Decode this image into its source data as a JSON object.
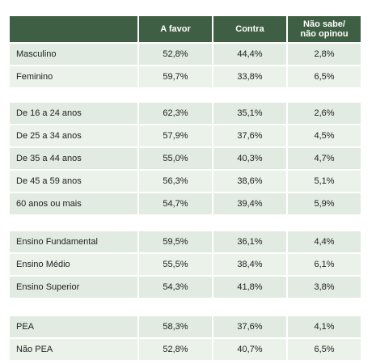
{
  "table": {
    "header": [
      "A favor",
      "Contra",
      "Não sabe/ não opinou"
    ],
    "groups": [
      [
        [
          "Masculino",
          "52,8%",
          "44,4%",
          "2,8%"
        ],
        [
          "Feminino",
          "59,7%",
          "33,8%",
          "6,5%"
        ]
      ],
      [
        [
          "De 16 a 24 anos",
          "62,3%",
          "35,1%",
          "2,6%"
        ],
        [
          "De 25 a 34 anos",
          "57,9%",
          "37,6%",
          "4,5%"
        ],
        [
          "De 35 a 44 anos",
          "55,0%",
          "40,3%",
          "4,7%"
        ],
        [
          "De 45 a 59 anos",
          "56,3%",
          "38,6%",
          "5,1%"
        ],
        [
          "60 anos ou mais",
          "54,7%",
          "39,4%",
          "5,9%"
        ]
      ],
      [
        [
          "Ensino Fundamental",
          "59,5%",
          "36,1%",
          "4,4%"
        ],
        [
          "Ensino Médio",
          "55,5%",
          "38,4%",
          "6,1%"
        ],
        [
          "Ensino Superior",
          "54,3%",
          "41,8%",
          "3,8%"
        ]
      ],
      [
        [
          "PEA",
          "58,3%",
          "37,6%",
          "4,1%"
        ],
        [
          "Não PEA",
          "52,8%",
          "40,7%",
          "6,5%"
        ]
      ]
    ]
  }
}
